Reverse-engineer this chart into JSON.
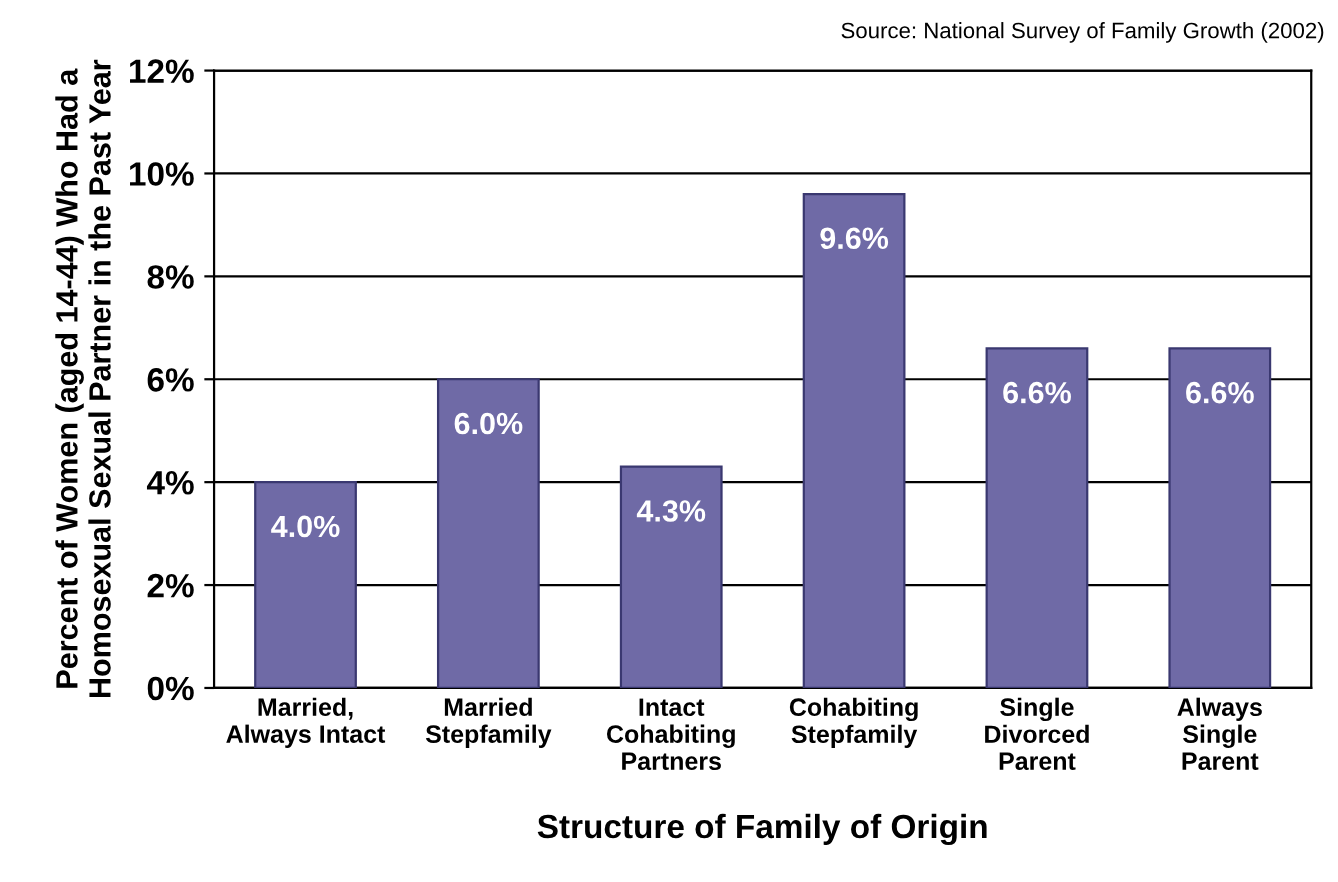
{
  "chart_data": {
    "type": "bar",
    "categories": [
      "Married,\nAlways Intact",
      "Married\nStepfamily",
      "Intact\nCohabiting\nPartners",
      "Cohabiting\nStepfamily",
      "Single\nDivorced\nParent",
      "Always\nSingle\nParent"
    ],
    "values": [
      4.0,
      6.0,
      4.3,
      9.6,
      6.6,
      6.6
    ],
    "value_labels": [
      "4.0%",
      "6.0%",
      "4.3%",
      "9.6%",
      "6.6%",
      "6.6%"
    ],
    "color": "#6f6aa6",
    "xlabel": "Structure of Family of Origin",
    "ylabel": "Percent of Women (aged 14-44) Who Had a\nHomosexual Sexual Partner in the Past Year",
    "ylim": [
      0,
      12
    ],
    "yticks": [
      {
        "value": 0,
        "label": "0%"
      },
      {
        "value": 2,
        "label": "2%"
      },
      {
        "value": 4,
        "label": "4%"
      },
      {
        "value": 6,
        "label": "6%"
      },
      {
        "value": 8,
        "label": "8%"
      },
      {
        "value": 10,
        "label": "10%"
      },
      {
        "value": 12,
        "label": "12%"
      }
    ],
    "grid": "y",
    "annotations": [
      "Source: National Survey of Family Growth (2002)"
    ]
  }
}
